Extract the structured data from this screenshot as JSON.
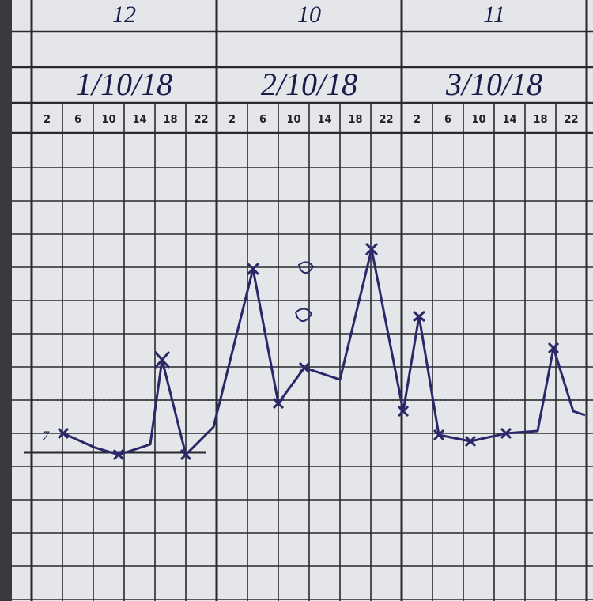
{
  "header": {
    "row1": [
      "12",
      "10",
      "11"
    ],
    "dates": [
      "1/10/18",
      "2/10/18",
      "3/10/18"
    ]
  },
  "hours": [
    "2",
    "6",
    "10",
    "14",
    "18",
    "22",
    "2",
    "6",
    "10",
    "14",
    "18",
    "22",
    "2",
    "6",
    "10",
    "14",
    "18",
    "22"
  ],
  "annotations": [
    "7"
  ]
}
